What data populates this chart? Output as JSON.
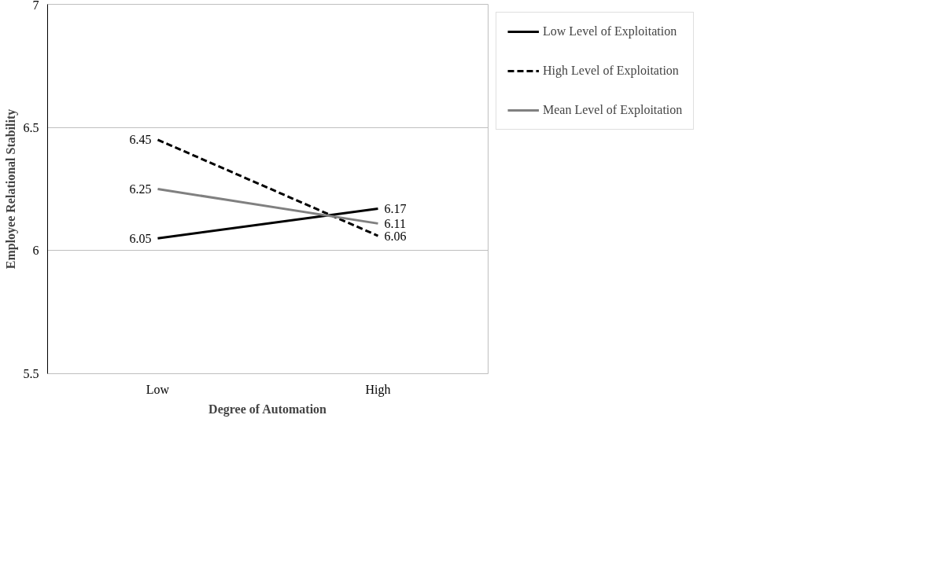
{
  "chart_data": {
    "type": "line",
    "xlabel": "Degree of Automation",
    "ylabel": "Employee Relational Stability",
    "categories": [
      "Low",
      "High"
    ],
    "series": [
      {
        "name": "Low Level of Exploitation",
        "color": "#000000",
        "line_style": "solid",
        "values": [
          6.05,
          6.17
        ]
      },
      {
        "name": "High Level of Exploitation",
        "color": "#000000",
        "line_style": "dashed",
        "values": [
          6.45,
          6.06
        ]
      },
      {
        "name": "Mean Level of Exploitation",
        "color": "#808080",
        "line_style": "solid",
        "values": [
          6.25,
          6.11
        ]
      }
    ],
    "ylim": [
      5.5,
      7
    ],
    "yticks": [
      5.5,
      6,
      6.5,
      7
    ],
    "grid": "y",
    "legend": "right",
    "data_labels": true,
    "marker": "none"
  }
}
